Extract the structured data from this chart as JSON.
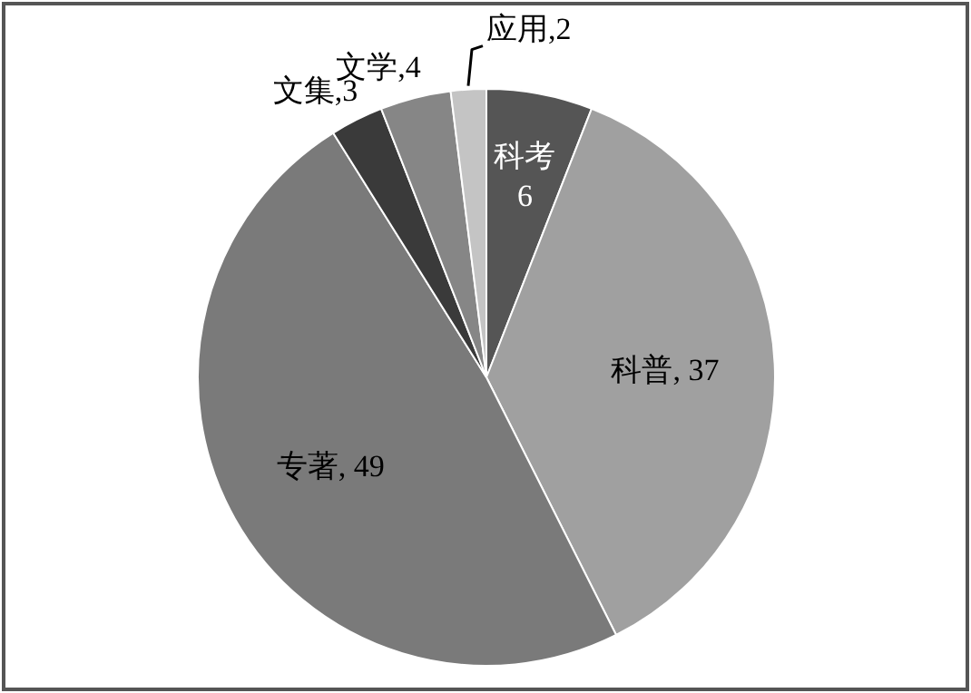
{
  "chart_data": {
    "type": "pie",
    "categories": [
      "科考",
      "科普",
      "专著",
      "文集",
      "文学",
      "应用"
    ],
    "values": [
      6,
      37,
      49,
      3,
      4,
      2
    ],
    "colors": [
      "#555555",
      "#a0a0a0",
      "#7a7a7a",
      "#3a3a3a",
      "#868686",
      "#c4c4c4"
    ],
    "value_labels": [
      "6",
      ", 37",
      ", 49",
      ",3",
      ",4",
      ",2"
    ]
  }
}
